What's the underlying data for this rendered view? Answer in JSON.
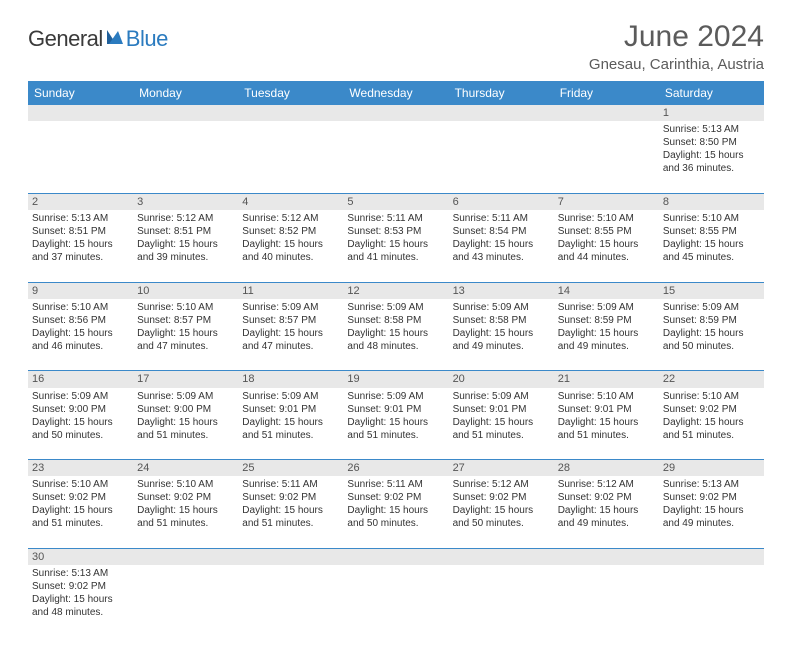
{
  "logo": {
    "part1": "General",
    "part2": "Blue"
  },
  "title": "June 2024",
  "location": "Gnesau, Carinthia, Austria",
  "colors": {
    "header_bg": "#3b89c9",
    "header_text": "#ffffff",
    "daynum_bg": "#e8e8e8",
    "border": "#3b89c9",
    "logo_gray": "#3a3a3a",
    "logo_blue": "#2b7bbf"
  },
  "weekdays": [
    "Sunday",
    "Monday",
    "Tuesday",
    "Wednesday",
    "Thursday",
    "Friday",
    "Saturday"
  ],
  "weeks": [
    [
      null,
      null,
      null,
      null,
      null,
      null,
      {
        "n": "1",
        "sr": "5:13 AM",
        "ss": "8:50 PM",
        "dh": "15",
        "dm": "36"
      }
    ],
    [
      {
        "n": "2",
        "sr": "5:13 AM",
        "ss": "8:51 PM",
        "dh": "15",
        "dm": "37"
      },
      {
        "n": "3",
        "sr": "5:12 AM",
        "ss": "8:51 PM",
        "dh": "15",
        "dm": "39"
      },
      {
        "n": "4",
        "sr": "5:12 AM",
        "ss": "8:52 PM",
        "dh": "15",
        "dm": "40"
      },
      {
        "n": "5",
        "sr": "5:11 AM",
        "ss": "8:53 PM",
        "dh": "15",
        "dm": "41"
      },
      {
        "n": "6",
        "sr": "5:11 AM",
        "ss": "8:54 PM",
        "dh": "15",
        "dm": "43"
      },
      {
        "n": "7",
        "sr": "5:10 AM",
        "ss": "8:55 PM",
        "dh": "15",
        "dm": "44"
      },
      {
        "n": "8",
        "sr": "5:10 AM",
        "ss": "8:55 PM",
        "dh": "15",
        "dm": "45"
      }
    ],
    [
      {
        "n": "9",
        "sr": "5:10 AM",
        "ss": "8:56 PM",
        "dh": "15",
        "dm": "46"
      },
      {
        "n": "10",
        "sr": "5:10 AM",
        "ss": "8:57 PM",
        "dh": "15",
        "dm": "47"
      },
      {
        "n": "11",
        "sr": "5:09 AM",
        "ss": "8:57 PM",
        "dh": "15",
        "dm": "47"
      },
      {
        "n": "12",
        "sr": "5:09 AM",
        "ss": "8:58 PM",
        "dh": "15",
        "dm": "48"
      },
      {
        "n": "13",
        "sr": "5:09 AM",
        "ss": "8:58 PM",
        "dh": "15",
        "dm": "49"
      },
      {
        "n": "14",
        "sr": "5:09 AM",
        "ss": "8:59 PM",
        "dh": "15",
        "dm": "49"
      },
      {
        "n": "15",
        "sr": "5:09 AM",
        "ss": "8:59 PM",
        "dh": "15",
        "dm": "50"
      }
    ],
    [
      {
        "n": "16",
        "sr": "5:09 AM",
        "ss": "9:00 PM",
        "dh": "15",
        "dm": "50"
      },
      {
        "n": "17",
        "sr": "5:09 AM",
        "ss": "9:00 PM",
        "dh": "15",
        "dm": "51"
      },
      {
        "n": "18",
        "sr": "5:09 AM",
        "ss": "9:01 PM",
        "dh": "15",
        "dm": "51"
      },
      {
        "n": "19",
        "sr": "5:09 AM",
        "ss": "9:01 PM",
        "dh": "15",
        "dm": "51"
      },
      {
        "n": "20",
        "sr": "5:09 AM",
        "ss": "9:01 PM",
        "dh": "15",
        "dm": "51"
      },
      {
        "n": "21",
        "sr": "5:10 AM",
        "ss": "9:01 PM",
        "dh": "15",
        "dm": "51"
      },
      {
        "n": "22",
        "sr": "5:10 AM",
        "ss": "9:02 PM",
        "dh": "15",
        "dm": "51"
      }
    ],
    [
      {
        "n": "23",
        "sr": "5:10 AM",
        "ss": "9:02 PM",
        "dh": "15",
        "dm": "51"
      },
      {
        "n": "24",
        "sr": "5:10 AM",
        "ss": "9:02 PM",
        "dh": "15",
        "dm": "51"
      },
      {
        "n": "25",
        "sr": "5:11 AM",
        "ss": "9:02 PM",
        "dh": "15",
        "dm": "51"
      },
      {
        "n": "26",
        "sr": "5:11 AM",
        "ss": "9:02 PM",
        "dh": "15",
        "dm": "50"
      },
      {
        "n": "27",
        "sr": "5:12 AM",
        "ss": "9:02 PM",
        "dh": "15",
        "dm": "50"
      },
      {
        "n": "28",
        "sr": "5:12 AM",
        "ss": "9:02 PM",
        "dh": "15",
        "dm": "49"
      },
      {
        "n": "29",
        "sr": "5:13 AM",
        "ss": "9:02 PM",
        "dh": "15",
        "dm": "49"
      }
    ],
    [
      {
        "n": "30",
        "sr": "5:13 AM",
        "ss": "9:02 PM",
        "dh": "15",
        "dm": "48"
      },
      null,
      null,
      null,
      null,
      null,
      null
    ]
  ],
  "labels": {
    "sunrise": "Sunrise:",
    "sunset": "Sunset:",
    "daylight": "Daylight:",
    "hours": "hours",
    "and": "and",
    "minutes": "minutes."
  }
}
